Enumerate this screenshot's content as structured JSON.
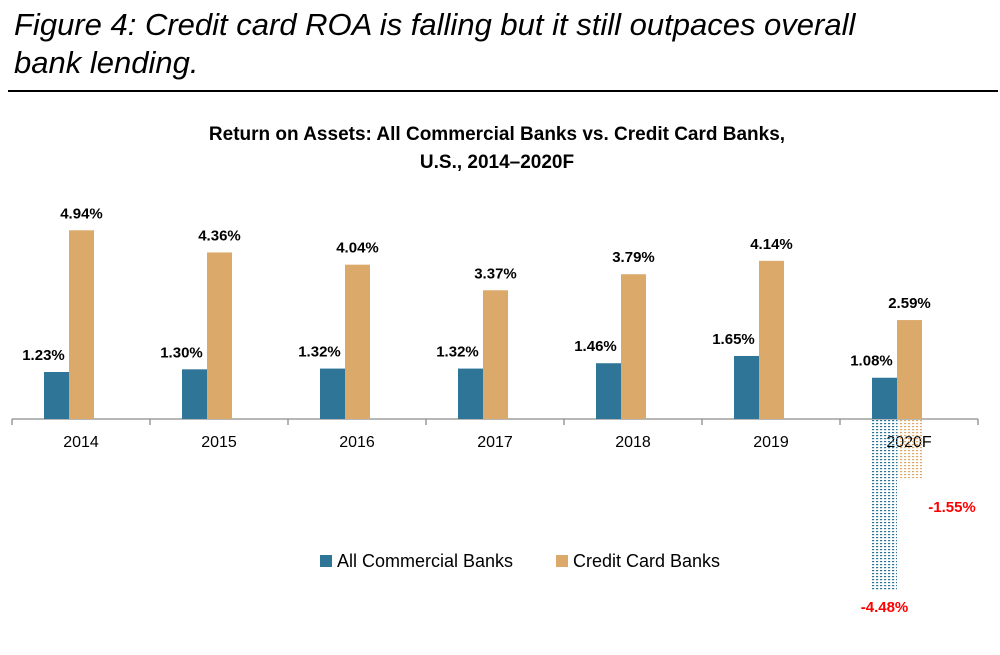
{
  "figure": {
    "title_line1": "Figure 4: Credit card ROA is falling but it still outpaces overall",
    "title_line2": "bank lending."
  },
  "chart_data": {
    "type": "bar",
    "title": "Return on Assets: All Commercial Banks vs. Credit Card Banks,",
    "subtitle": "U.S., 2014–2020F",
    "categories": [
      "2014",
      "2015",
      "2016",
      "2017",
      "2018",
      "2019",
      "2020F"
    ],
    "series": [
      {
        "name": "All Commercial Banks",
        "color": "#2e7597",
        "values": [
          1.23,
          1.3,
          1.32,
          1.32,
          1.46,
          1.65,
          1.08
        ],
        "labels": [
          "1.23%",
          "1.30%",
          "1.32%",
          "1.32%",
          "1.46%",
          "1.65%",
          "1.08%"
        ]
      },
      {
        "name": "Credit Card Banks",
        "color": "#dba96a",
        "values": [
          4.94,
          4.36,
          4.04,
          3.37,
          3.79,
          4.14,
          2.59
        ],
        "labels": [
          "4.94%",
          "4.36%",
          "4.04%",
          "3.37%",
          "3.79%",
          "4.14%",
          "2.59%"
        ]
      }
    ],
    "scenario": {
      "category": "2020F",
      "style": "dotted",
      "values": [
        -4.48,
        -1.55
      ],
      "labels": [
        "-4.48%",
        "-1.55%"
      ],
      "label_color": "#ff0000"
    },
    "xlabel": "",
    "ylabel": "",
    "ylim": [
      -4.8,
      5.5
    ],
    "grid": false,
    "legend": "bottom-center"
  }
}
